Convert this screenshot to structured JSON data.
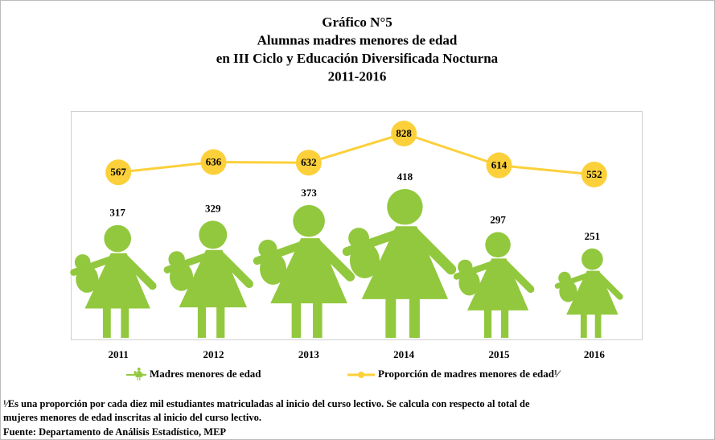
{
  "chart_data": {
    "type": "bar",
    "title": [
      "Gráfico N°5",
      "Alumnas madres menores de edad",
      "en III Ciclo y Educación Diversificada Nocturna",
      "2011-2016"
    ],
    "categories": [
      "2011",
      "2012",
      "2013",
      "2014",
      "2015",
      "2016"
    ],
    "series": [
      {
        "name": "Madres menores de edad",
        "color": "#92c83e",
        "values": [
          317,
          329,
          373,
          418,
          297,
          251
        ]
      },
      {
        "name": "Proporción de madres menores de edad¹⁄",
        "color": "#fcd03a",
        "type": "line",
        "values": [
          567,
          636,
          632,
          828,
          614,
          552
        ]
      }
    ],
    "footnote": [
      "¹⁄Es una proporción por cada diez mil estudiantes matriculadas al inicio del curso lectivo. Se calcula con respecto al total de",
      "mujeres menores de edad inscritas al inicio del curso lectivo."
    ],
    "source": "Fuente: Departamento de Análisis Estadístico, MEP"
  }
}
